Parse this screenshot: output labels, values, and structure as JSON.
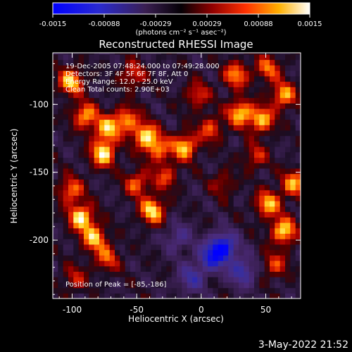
{
  "colorbar": {
    "ticks": [
      "-0.0015",
      "-0.00088",
      "-0.00029",
      "0.00029",
      "0.00088",
      "0.0015"
    ],
    "unit_label": "(photons cm⁻² s⁻¹ asec⁻²)"
  },
  "title": "Reconstructed RHESSI Image",
  "info": [
    "19-Dec-2005 07:48:24.000 to 07:49:28.000",
    "Detectors: 3F 4F 5F 6F 7F 8F, Att 0",
    "Energy Range: 12.0 - 25.0 keV",
    "Clean     Total counts: 2.90E+03"
  ],
  "peak_label": "Position of Peak = [-85,-186]",
  "xaxis": {
    "label": "Heliocentric X (arcsec)",
    "ticks": [
      {
        "v": -100,
        "t": "-100"
      },
      {
        "v": -50,
        "t": "-50"
      },
      {
        "v": 0,
        "t": "0"
      },
      {
        "v": 50,
        "t": "50"
      }
    ],
    "range": [
      -115,
      77
    ]
  },
  "yaxis": {
    "label": "Heliocentric Y (arcsec)",
    "ticks": [
      {
        "v": -100,
        "t": "-100"
      },
      {
        "v": -150,
        "t": "-150"
      },
      {
        "v": -200,
        "t": "-200"
      }
    ],
    "range": [
      -243,
      -62
    ]
  },
  "footer_timestamp": "3-May-2022 21:52",
  "colors": {
    "background": "#000000",
    "foreground": "#ffffff",
    "colormap": [
      "#0000ff",
      "#1a1ad0",
      "#3a2f9a",
      "#4b2a7a",
      "#3a1f52",
      "#1a0d22",
      "#500000",
      "#a00000",
      "#e02000",
      "#ff6000",
      "#ffb000",
      "#ffee60",
      "#ffffff"
    ]
  },
  "image": {
    "hot_spots": [
      {
        "x": -103,
        "y": -85,
        "i": 0.85
      },
      {
        "x": -92,
        "y": -110,
        "i": 0.75
      },
      {
        "x": -75,
        "y": -120,
        "i": 0.8
      },
      {
        "x": -60,
        "y": -113,
        "i": 0.7
      },
      {
        "x": -45,
        "y": -125,
        "i": 0.9
      },
      {
        "x": -78,
        "y": -138,
        "i": 0.95
      },
      {
        "x": -35,
        "y": -135,
        "i": 0.6
      },
      {
        "x": -15,
        "y": -133,
        "i": 0.85
      },
      {
        "x": 5,
        "y": -120,
        "i": 0.55
      },
      {
        "x": 25,
        "y": -80,
        "i": 0.7
      },
      {
        "x": 28,
        "y": -108,
        "i": 0.85
      },
      {
        "x": 45,
        "y": -113,
        "i": 0.8
      },
      {
        "x": 62,
        "y": -95,
        "i": 0.75
      },
      {
        "x": 50,
        "y": -75,
        "i": 0.6
      },
      {
        "x": 40,
        "y": -140,
        "i": 0.45
      },
      {
        "x": -103,
        "y": -165,
        "i": 0.65
      },
      {
        "x": -95,
        "y": -185,
        "i": 0.95
      },
      {
        "x": -85,
        "y": -200,
        "i": 0.8
      },
      {
        "x": -75,
        "y": -215,
        "i": 0.55
      },
      {
        "x": -40,
        "y": -180,
        "i": 0.9
      },
      {
        "x": -52,
        "y": -160,
        "i": 0.6
      },
      {
        "x": -30,
        "y": -155,
        "i": 0.5
      },
      {
        "x": 50,
        "y": -175,
        "i": 0.8
      },
      {
        "x": 62,
        "y": -195,
        "i": 0.9
      },
      {
        "x": 70,
        "y": -160,
        "i": 0.75
      },
      {
        "x": 55,
        "y": -220,
        "i": 0.5
      },
      {
        "x": -5,
        "y": -95,
        "i": 0.5
      },
      {
        "x": -55,
        "y": -80,
        "i": 0.5
      },
      {
        "x": -100,
        "y": -230,
        "i": 0.4
      },
      {
        "x": 15,
        "y": -160,
        "i": 0.35
      }
    ],
    "cold_spots": [
      {
        "x": 15,
        "y": -207,
        "i": 0.9
      },
      {
        "x": 5,
        "y": -215,
        "i": 0.6
      },
      {
        "x": -10,
        "y": -230,
        "i": 0.5
      },
      {
        "x": 30,
        "y": -225,
        "i": 0.6
      },
      {
        "x": -20,
        "y": -200,
        "i": 0.4
      }
    ]
  }
}
